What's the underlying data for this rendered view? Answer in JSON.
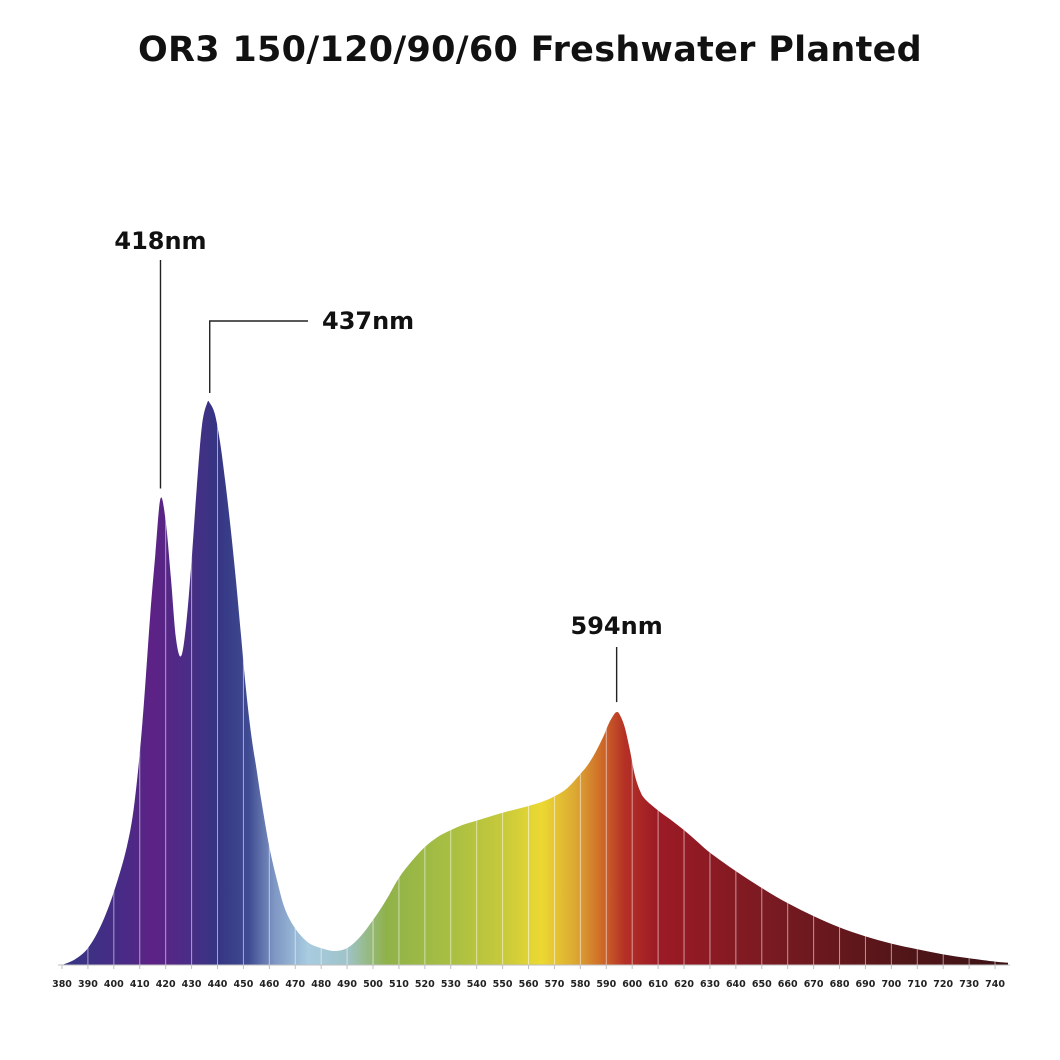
{
  "chart_data": {
    "type": "area",
    "title": "OR3 150/120/90/60 Freshwater Planted",
    "xlabel": "",
    "ylabel": "",
    "xlim": [
      380,
      745
    ],
    "ylim": [
      0,
      1
    ],
    "x_ticks": [
      380,
      390,
      400,
      410,
      420,
      430,
      440,
      450,
      460,
      470,
      480,
      490,
      500,
      510,
      520,
      530,
      540,
      550,
      560,
      570,
      580,
      590,
      600,
      610,
      620,
      630,
      640,
      650,
      660,
      670,
      680,
      690,
      700,
      710,
      720,
      730,
      740
    ],
    "grid": true,
    "legend": "none",
    "series": [
      {
        "x": [
          380,
          385,
          390,
          395,
          400,
          405,
          408,
          411,
          414,
          416,
          418,
          420,
          422,
          424,
          426,
          428,
          430,
          432,
          434,
          436,
          437,
          439,
          441,
          443,
          445,
          447,
          449,
          451,
          453,
          455,
          457,
          460,
          463,
          466,
          470,
          475,
          480,
          485,
          490,
          495,
          500,
          505,
          510,
          515,
          520,
          525,
          530,
          535,
          540,
          545,
          550,
          555,
          560,
          565,
          570,
          575,
          580,
          583,
          586,
          589,
          591,
          593,
          594,
          595,
          597,
          599,
          601,
          603,
          605,
          610,
          615,
          620,
          625,
          630,
          640,
          650,
          660,
          670,
          680,
          690,
          700,
          710,
          720,
          730,
          740,
          745
        ],
        "y": [
          0.0,
          0.01,
          0.03,
          0.07,
          0.13,
          0.21,
          0.29,
          0.43,
          0.62,
          0.73,
          0.83,
          0.79,
          0.69,
          0.58,
          0.55,
          0.61,
          0.72,
          0.85,
          0.96,
          1.0,
          1.0,
          0.98,
          0.93,
          0.86,
          0.78,
          0.69,
          0.59,
          0.49,
          0.41,
          0.35,
          0.29,
          0.21,
          0.15,
          0.1,
          0.065,
          0.04,
          0.03,
          0.025,
          0.03,
          0.05,
          0.08,
          0.115,
          0.155,
          0.185,
          0.21,
          0.228,
          0.24,
          0.25,
          0.257,
          0.264,
          0.271,
          0.277,
          0.283,
          0.29,
          0.3,
          0.315,
          0.34,
          0.357,
          0.38,
          0.408,
          0.43,
          0.446,
          0.45,
          0.447,
          0.425,
          0.385,
          0.338,
          0.31,
          0.295,
          0.275,
          0.258,
          0.24,
          0.22,
          0.2,
          0.167,
          0.137,
          0.11,
          0.087,
          0.067,
          0.051,
          0.038,
          0.028,
          0.019,
          0.012,
          0.006,
          0.004
        ]
      }
    ],
    "annotations": [
      {
        "label": "418nm",
        "x": 418
      },
      {
        "label": "437nm",
        "x": 437
      },
      {
        "label": "594nm",
        "x": 594
      }
    ],
    "colors": {
      "violet": "#5e2286",
      "indigo": "#353583",
      "cyan": "#a8cce0",
      "green": "#8fb24a",
      "yellow": "#ecd932",
      "orange": "#cf6c28",
      "red": "#9c1a25",
      "deep_red": "#3a1216"
    }
  }
}
